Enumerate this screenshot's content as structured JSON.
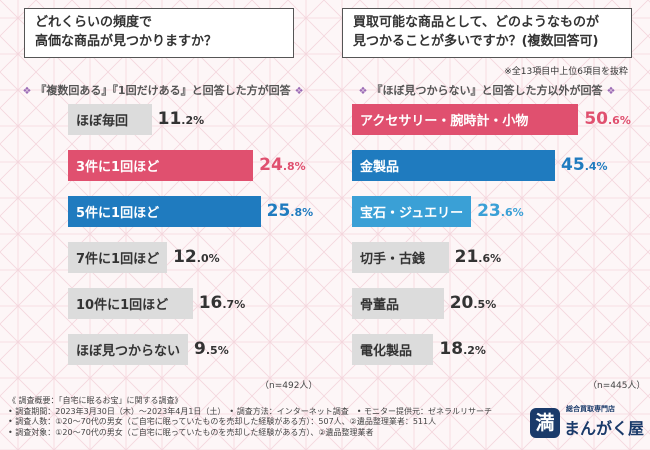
{
  "chart_data": [
    {
      "type": "bar",
      "orientation": "horizontal",
      "title": "どれくらいの頻度で高価な商品が見つかりますか？",
      "title_lines": [
        "どれくらいの頻度で",
        "高価な商品が見つかりますか？"
      ],
      "subtitle": "『複数回ある』『1回だけある』と回答した方が回答",
      "unit": "%",
      "xlim": [
        0,
        30
      ],
      "categories": [
        "ほぼ毎回",
        "3件に1回ほど",
        "5件に1回ほど",
        "7件に1回ほど",
        "10件に1回ほど",
        "ほぼ見つからない"
      ],
      "values": [
        11.2,
        24.8,
        25.8,
        12.0,
        16.7,
        9.5
      ],
      "value_labels": [
        {
          "big": "11",
          "small": ".2%"
        },
        {
          "big": "24",
          "small": ".8%"
        },
        {
          "big": "25",
          "small": ".8%"
        },
        {
          "big": "12",
          "small": ".0%"
        },
        {
          "big": "16",
          "small": ".7%"
        },
        {
          "big": "9",
          "small": ".5%"
        }
      ],
      "highlight": [
        false,
        true,
        true,
        false,
        false,
        false
      ],
      "colors": [
        "#dcdcdc",
        "#e0506f",
        "#1f7bbf",
        "#dcdcdc",
        "#dcdcdc",
        "#dcdcdc"
      ],
      "value_colors": [
        "#333333",
        "#e0506f",
        "#1f7bbf",
        "#333333",
        "#333333",
        "#333333"
      ],
      "n_note": "（n=492人）"
    },
    {
      "type": "bar",
      "orientation": "horizontal",
      "title": "買取可能な商品として、どのようなものが見つかることが多いですか？(複数回答可)",
      "title_lines": [
        "買取可能な商品として、どのようなものが",
        "見つかることが多いですか？(複数回答可)"
      ],
      "note": "※全13項目中上位6項目を抜粋",
      "subtitle": "『ほぼ見つからない』と回答した方以外が回答",
      "unit": "%",
      "xlim": [
        0,
        55
      ],
      "categories": [
        "アクセサリー・腕時計・小物",
        "金製品",
        "宝石・ジュエリー",
        "切手・古銭",
        "骨董品",
        "電化製品"
      ],
      "values": [
        50.6,
        45.4,
        23.6,
        21.6,
        20.5,
        18.2
      ],
      "value_labels": [
        {
          "big": "50",
          "small": ".6%"
        },
        {
          "big": "45",
          "small": ".4%"
        },
        {
          "big": "23",
          "small": ".6%"
        },
        {
          "big": "21",
          "small": ".6%"
        },
        {
          "big": "20",
          "small": ".5%"
        },
        {
          "big": "18",
          "small": ".2%"
        }
      ],
      "highlight": [
        true,
        true,
        true,
        false,
        false,
        false
      ],
      "colors": [
        "#e0506f",
        "#1f7bbf",
        "#3aa0d6",
        "#dcdcdc",
        "#dcdcdc",
        "#dcdcdc"
      ],
      "value_colors": [
        "#e0506f",
        "#1f7bbf",
        "#3aa0d6",
        "#333333",
        "#333333",
        "#333333"
      ],
      "n_note": "（n=445人）"
    }
  ],
  "footer": {
    "lines": [
      "《 調査概要：「自宅に眠るお宝」に関する調査》",
      "• 調査期間：2023年3月30日（木）〜2023年4月1日（土）　• 調査方法：インターネット調査　• モニター提供元：ゼネラルリサーチ",
      "• 調査人数：①20〜70代の男女（ご自宅に眠っていたものを売却した経験がある方）：507人、②遺品整理業者：511人",
      "• 調査対象：①20〜70代の男女（ご自宅に眠っていたものを売却した経験がある方）、②遺品整理業者"
    ]
  },
  "logo": {
    "tagline": "総合買取専門店",
    "name": "まんがく屋",
    "mark": "満"
  }
}
